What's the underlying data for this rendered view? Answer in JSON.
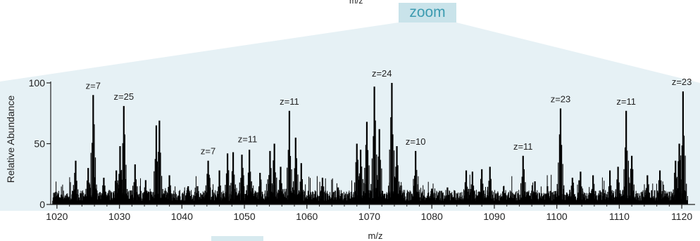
{
  "header": {
    "top_xlabel": "m/z",
    "zoom_label": "zoom"
  },
  "chart_data": {
    "type": "line",
    "title": "",
    "xlabel": "m/z",
    "ylabel": "Relative Abundance",
    "xlim": [
      1019,
      1121
    ],
    "ylim": [
      0,
      100
    ],
    "xticks": [
      1020,
      1030,
      1040,
      1050,
      1060,
      1070,
      1080,
      1090,
      1100,
      1110,
      1120
    ],
    "yticks": [
      0,
      50,
      100
    ],
    "grid": false,
    "peaks": [
      {
        "x": 1023.0,
        "y": 36
      },
      {
        "x": 1025.0,
        "y": 30
      },
      {
        "x": 1025.8,
        "y": 90
      },
      {
        "x": 1027.5,
        "y": 22
      },
      {
        "x": 1029.5,
        "y": 28
      },
      {
        "x": 1030.1,
        "y": 48
      },
      {
        "x": 1030.7,
        "y": 81
      },
      {
        "x": 1032.5,
        "y": 33
      },
      {
        "x": 1034.2,
        "y": 20
      },
      {
        "x": 1035.9,
        "y": 65
      },
      {
        "x": 1036.4,
        "y": 69
      },
      {
        "x": 1038.0,
        "y": 24
      },
      {
        "x": 1041.0,
        "y": 15
      },
      {
        "x": 1042.5,
        "y": 15
      },
      {
        "x": 1044.2,
        "y": 36
      },
      {
        "x": 1046.0,
        "y": 28
      },
      {
        "x": 1047.3,
        "y": 42
      },
      {
        "x": 1048.2,
        "y": 43
      },
      {
        "x": 1049.6,
        "y": 41
      },
      {
        "x": 1050.8,
        "y": 45
      },
      {
        "x": 1052.5,
        "y": 26
      },
      {
        "x": 1054.1,
        "y": 44
      },
      {
        "x": 1054.8,
        "y": 50
      },
      {
        "x": 1055.8,
        "y": 31
      },
      {
        "x": 1057.2,
        "y": 77
      },
      {
        "x": 1058.2,
        "y": 55
      },
      {
        "x": 1059.1,
        "y": 34
      },
      {
        "x": 1062.5,
        "y": 22
      },
      {
        "x": 1065.0,
        "y": 14
      },
      {
        "x": 1068.0,
        "y": 50
      },
      {
        "x": 1068.6,
        "y": 45
      },
      {
        "x": 1069.6,
        "y": 68
      },
      {
        "x": 1070.8,
        "y": 97
      },
      {
        "x": 1071.6,
        "y": 62
      },
      {
        "x": 1073.6,
        "y": 100
      },
      {
        "x": 1074.4,
        "y": 48
      },
      {
        "x": 1077.4,
        "y": 44
      },
      {
        "x": 1080.0,
        "y": 13
      },
      {
        "x": 1082.5,
        "y": 14
      },
      {
        "x": 1085.5,
        "y": 28
      },
      {
        "x": 1086.5,
        "y": 27
      },
      {
        "x": 1088.0,
        "y": 29
      },
      {
        "x": 1089.3,
        "y": 31
      },
      {
        "x": 1091.5,
        "y": 15
      },
      {
        "x": 1094.6,
        "y": 40
      },
      {
        "x": 1096.5,
        "y": 19
      },
      {
        "x": 1098.5,
        "y": 15
      },
      {
        "x": 1100.6,
        "y": 79
      },
      {
        "x": 1102.5,
        "y": 22
      },
      {
        "x": 1103.8,
        "y": 27
      },
      {
        "x": 1105.8,
        "y": 24
      },
      {
        "x": 1108.5,
        "y": 28
      },
      {
        "x": 1109.8,
        "y": 31
      },
      {
        "x": 1111.1,
        "y": 77
      },
      {
        "x": 1112.0,
        "y": 40
      },
      {
        "x": 1114.5,
        "y": 24
      },
      {
        "x": 1116.5,
        "y": 28
      },
      {
        "x": 1119.0,
        "y": 36
      },
      {
        "x": 1119.6,
        "y": 50
      },
      {
        "x": 1120.2,
        "y": 93
      }
    ],
    "annotations": [
      {
        "text": "z=7",
        "x": 1025.8,
        "y": 90
      },
      {
        "text": "z=25",
        "x": 1030.7,
        "y": 81
      },
      {
        "text": "z=7",
        "x": 1044.2,
        "y": 36
      },
      {
        "text": "z=11",
        "x": 1050.5,
        "y": 46
      },
      {
        "text": "z=11",
        "x": 1057.2,
        "y": 77
      },
      {
        "text": "z=24",
        "x": 1072.0,
        "y": 100
      },
      {
        "text": "z=10",
        "x": 1077.4,
        "y": 44
      },
      {
        "text": "z=11",
        "x": 1094.6,
        "y": 40
      },
      {
        "text": "z=23",
        "x": 1100.6,
        "y": 79
      },
      {
        "text": "z=11",
        "x": 1111.1,
        "y": 77
      },
      {
        "text": "z=23",
        "x": 1120.0,
        "y": 93
      }
    ],
    "colors": {
      "trace": "#000000",
      "zoom_panel": "#e6f1f5",
      "zoom_label": "#3c9bb0"
    }
  }
}
